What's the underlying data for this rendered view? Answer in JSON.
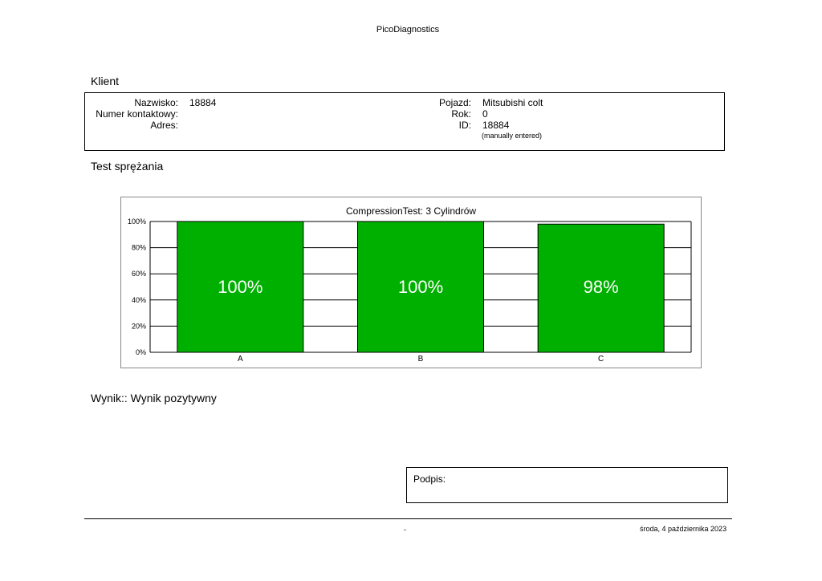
{
  "header": {
    "app_title": "PicoDiagnostics"
  },
  "client": {
    "heading": "Klient",
    "fields_left": [
      {
        "label": "Nazwisko:",
        "value": "18884"
      },
      {
        "label": "Numer kontaktowy:",
        "value": ""
      },
      {
        "label": "Adres:",
        "value": ""
      }
    ],
    "fields_right": [
      {
        "label": "Pojazd:",
        "value": "Mitsubishi colt"
      },
      {
        "label": "Rok:",
        "value": "0"
      },
      {
        "label": "ID:",
        "value": "18884"
      }
    ],
    "id_note": "(manually entered)"
  },
  "compression": {
    "heading": "Test sprężania"
  },
  "chart_data": {
    "type": "bar",
    "title": "CompressionTest: 3 Cylindrów",
    "categories": [
      "A",
      "B",
      "C"
    ],
    "values": [
      100,
      100,
      98
    ],
    "data_labels": [
      "100%",
      "100%",
      "98%"
    ],
    "y_ticks": [
      "0%",
      "20%",
      "40%",
      "60%",
      "80%",
      "100%"
    ],
    "ylim": [
      0,
      100
    ],
    "xlabel": "",
    "ylabel": "",
    "grid": true,
    "bar_color": "#00b000"
  },
  "result": {
    "text": "Wynik:: Wynik pozytywny"
  },
  "signature": {
    "label": "Podpis:"
  },
  "footer": {
    "dash": "-",
    "date": "środa, 4 października 2023"
  }
}
